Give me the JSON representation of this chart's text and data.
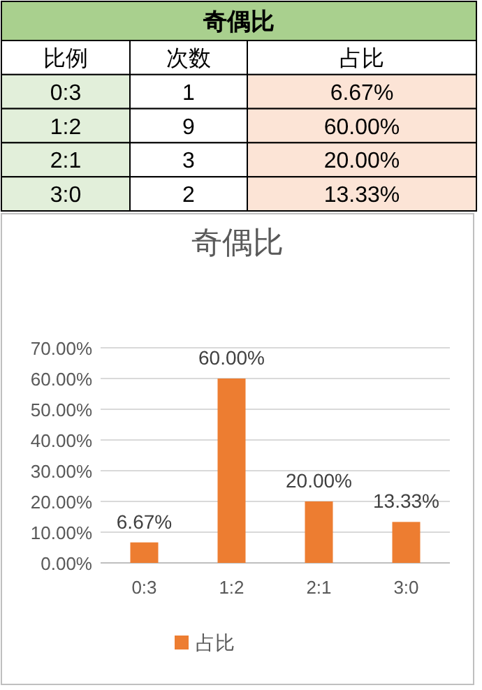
{
  "chart_data": [
    {
      "type": "other",
      "title": "奇偶比",
      "xlabel": "比例",
      "categories": [
        "0:3",
        "1:2",
        "2:1",
        "3:0"
      ],
      "series": [
        {
          "name": "次数",
          "values": [
            1,
            9,
            3,
            2
          ],
          "value_labels": [
            "1",
            "9",
            "3",
            "2"
          ]
        },
        {
          "name": "占比",
          "color": "#fce4d6",
          "values": [
            6.67,
            60,
            20,
            13.33
          ],
          "value_labels": [
            "6.67%",
            "60.00%",
            "20.00%",
            "13.33%"
          ]
        }
      ]
    },
    {
      "type": "bar",
      "title": "奇偶比",
      "categories": [
        "0:3",
        "1:2",
        "2:1",
        "3:0"
      ],
      "series": [
        {
          "name": "占比",
          "color": "#ed7d31",
          "values": [
            6.67,
            60,
            20,
            13.33
          ],
          "value_labels": [
            "6.67%",
            "60.00%",
            "20.00%",
            "13.33%"
          ]
        }
      ],
      "ylim": [
        0,
        70
      ],
      "yticks": [
        {
          "value": 0,
          "label": "0.00%"
        },
        {
          "value": 10,
          "label": "10.00%"
        },
        {
          "value": 20,
          "label": "20.00%"
        },
        {
          "value": 30,
          "label": "30.00%"
        },
        {
          "value": 40,
          "label": "40.00%"
        },
        {
          "value": 50,
          "label": "50.00%"
        },
        {
          "value": 60,
          "label": "60.00%"
        },
        {
          "value": 70,
          "label": "70.00%"
        }
      ],
      "grid": "y",
      "legend": "bottom"
    }
  ]
}
